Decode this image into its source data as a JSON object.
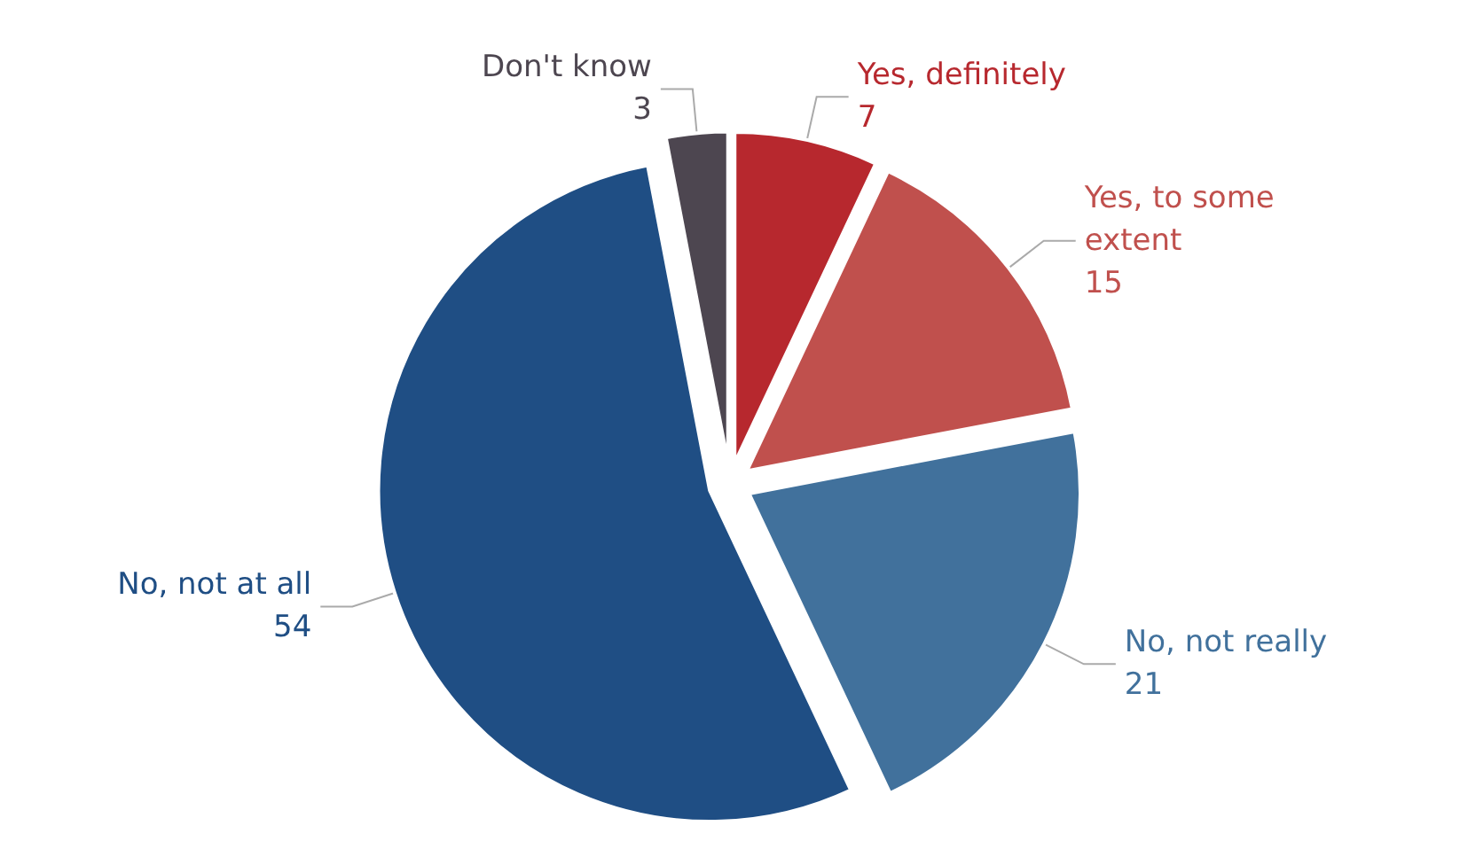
{
  "chart_data": {
    "type": "pie",
    "categories": [
      "Yes, definitely",
      "Yes, to some extent",
      "No, not really",
      "No, not at all",
      "Don't know"
    ],
    "values": [
      7,
      15,
      21,
      54,
      3
    ],
    "colors": [
      "#b7282e",
      "#c0504d",
      "#41719c",
      "#1f4e84",
      "#4d4650"
    ],
    "data_labels": true,
    "legend": false
  }
}
